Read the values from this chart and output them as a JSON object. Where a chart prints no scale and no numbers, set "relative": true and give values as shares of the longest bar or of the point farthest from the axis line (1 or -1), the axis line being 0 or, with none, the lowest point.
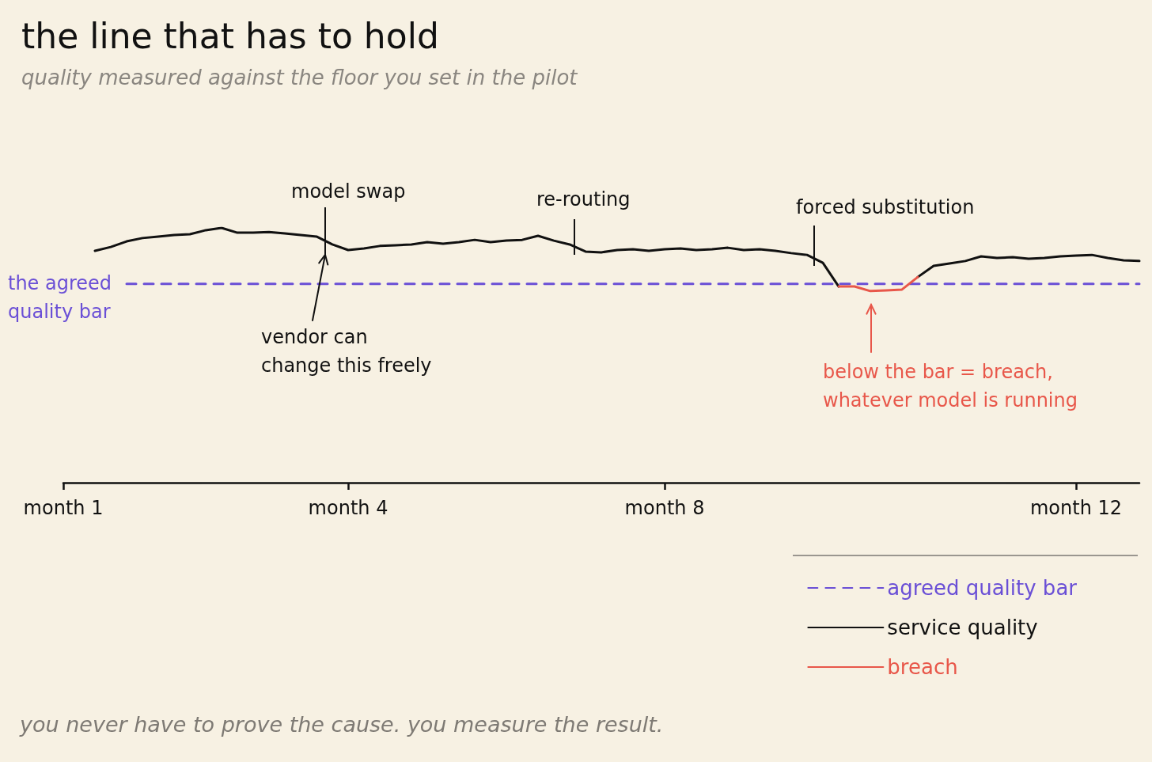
{
  "chart_data": {
    "type": "line",
    "title": "the line that has to hold",
    "subtitle": "quality measured against the floor you set in the pilot",
    "relative": true,
    "marker": "none",
    "legend": "bottom right",
    "categories": [
      "month 1",
      null,
      null,
      null,
      null,
      null,
      null,
      null,
      null,
      null,
      null,
      null,
      null,
      null,
      null,
      null,
      null,
      null,
      "month 4",
      null,
      null,
      null,
      null,
      null,
      null,
      null,
      null,
      null,
      null,
      null,
      null,
      null,
      null,
      null,
      null,
      null,
      null,
      null,
      "month 8",
      null,
      null,
      null,
      null,
      null,
      null,
      null,
      null,
      null,
      null,
      null,
      null,
      null,
      null,
      null,
      null,
      null,
      null,
      null,
      null,
      null,
      null,
      null,
      null,
      null,
      "month 12",
      null,
      null,
      null,
      null
    ],
    "series": [
      {
        "name": "agreed quality bar",
        "color": "#6a4fd6",
        "line_style": "dashed",
        "values": [
          null,
          null,
          null,
          null,
          0.78,
          0.78,
          0.78,
          0.78,
          0.78,
          0.78,
          0.78,
          0.78,
          0.78,
          0.78,
          0.78,
          0.78,
          0.78,
          0.78,
          0.78,
          0.78,
          0.78,
          0.78,
          0.78,
          0.78,
          0.78,
          0.78,
          0.78,
          0.78,
          0.78,
          0.78,
          0.78,
          0.78,
          0.78,
          0.78,
          0.78,
          0.78,
          0.78,
          0.78,
          0.78,
          0.78,
          0.78,
          0.78,
          0.78,
          0.78,
          0.78,
          0.78,
          0.78,
          0.78,
          0.78,
          0.78,
          0.78,
          0.78,
          0.78,
          0.78,
          0.78,
          0.78,
          0.78,
          0.78,
          0.78,
          0.78,
          0.78,
          0.78,
          0.78,
          0.78,
          0.78,
          0.78,
          0.78,
          0.78,
          0.78
        ]
      },
      {
        "name": "service quality",
        "color": "#111111",
        "line_style": "solid",
        "values": [
          null,
          null,
          0.91,
          0.925,
          0.947,
          0.96,
          0.966,
          0.972,
          0.975,
          0.991,
          1.0,
          0.981,
          0.981,
          0.984,
          0.978,
          0.972,
          0.966,
          0.935,
          0.913,
          0.919,
          0.929,
          0.932,
          0.935,
          0.944,
          0.938,
          0.944,
          0.953,
          0.944,
          0.95,
          0.953,
          0.969,
          0.95,
          0.935,
          0.907,
          0.904,
          0.913,
          0.916,
          0.91,
          0.916,
          0.919,
          0.913,
          0.916,
          0.922,
          0.913,
          0.916,
          0.91,
          0.901,
          0.894,
          0.863,
          0.77,
          null,
          null,
          null,
          null,
          0.807,
          0.851,
          0.86,
          0.87,
          0.888,
          0.882,
          0.885,
          0.879,
          0.882,
          0.888,
          0.891,
          0.894,
          0.882,
          0.873,
          0.87
        ]
      },
      {
        "name": "breach",
        "color": "#e8574a",
        "line_style": "solid",
        "values": [
          null,
          null,
          null,
          null,
          null,
          null,
          null,
          null,
          null,
          null,
          null,
          null,
          null,
          null,
          null,
          null,
          null,
          null,
          null,
          null,
          null,
          null,
          null,
          null,
          null,
          null,
          null,
          null,
          null,
          null,
          null,
          null,
          null,
          null,
          null,
          null,
          null,
          null,
          null,
          null,
          null,
          null,
          null,
          null,
          null,
          null,
          null,
          null,
          null,
          0.77,
          0.77,
          0.752,
          0.755,
          0.758,
          0.807,
          null,
          null,
          null,
          null,
          null,
          null,
          null,
          null,
          null,
          null,
          null,
          null,
          null,
          null
        ]
      }
    ],
    "annotations": [
      "model swap",
      "re-routing",
      "forced substitution",
      "vendor can change this freely",
      "below the bar = breach, whatever model is running",
      "the agreed quality bar",
      "you never have to prove the cause. you measure the result."
    ]
  }
}
